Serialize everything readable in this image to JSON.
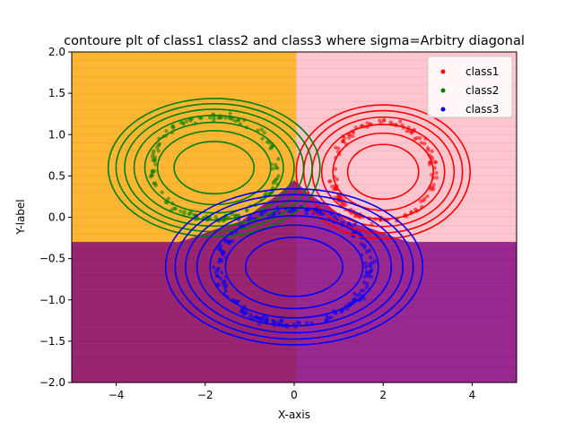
{
  "chart_data": {
    "type": "scatter",
    "title": "contoure plt of class1 class2 and class3 where sigma=Arbitry diagonal",
    "xlabel": "X-axis",
    "ylabel": "Y-label",
    "xlim": [
      -5,
      5
    ],
    "ylim": [
      -2,
      2
    ],
    "xticks": [
      "-4",
      "-2",
      "0",
      "2",
      "4"
    ],
    "yticks": [
      "-2.0",
      "-1.5",
      "-1.0",
      "-0.5",
      "0.0",
      "0.5",
      "1.0",
      "1.5",
      "2.0"
    ],
    "legend": {
      "placement": "top-right"
    },
    "regions": [
      {
        "class": "class2",
        "color": "#FFA500"
      },
      {
        "class": "class1",
        "color": "#FFC0CB"
      },
      {
        "class": "class3",
        "color": "#800080"
      }
    ],
    "series": [
      {
        "name": "class1",
        "color": "#FF0000",
        "shape": "ring",
        "center": [
          2.0,
          0.55
        ],
        "radius_x": 1.15,
        "radius_y": 0.6,
        "count": 140,
        "contour_levels": 6
      },
      {
        "name": "class2",
        "color": "#008000",
        "shape": "ring",
        "center": [
          -1.8,
          0.6
        ],
        "radius_x": 1.4,
        "radius_y": 0.62,
        "count": 140,
        "contour_levels": 7
      },
      {
        "name": "class3",
        "color": "#0000FF",
        "shape": "ring",
        "center": [
          0.0,
          -0.6
        ],
        "radius_x": 1.7,
        "radius_y": 0.7,
        "count": 220,
        "contour_levels": 7
      }
    ]
  }
}
